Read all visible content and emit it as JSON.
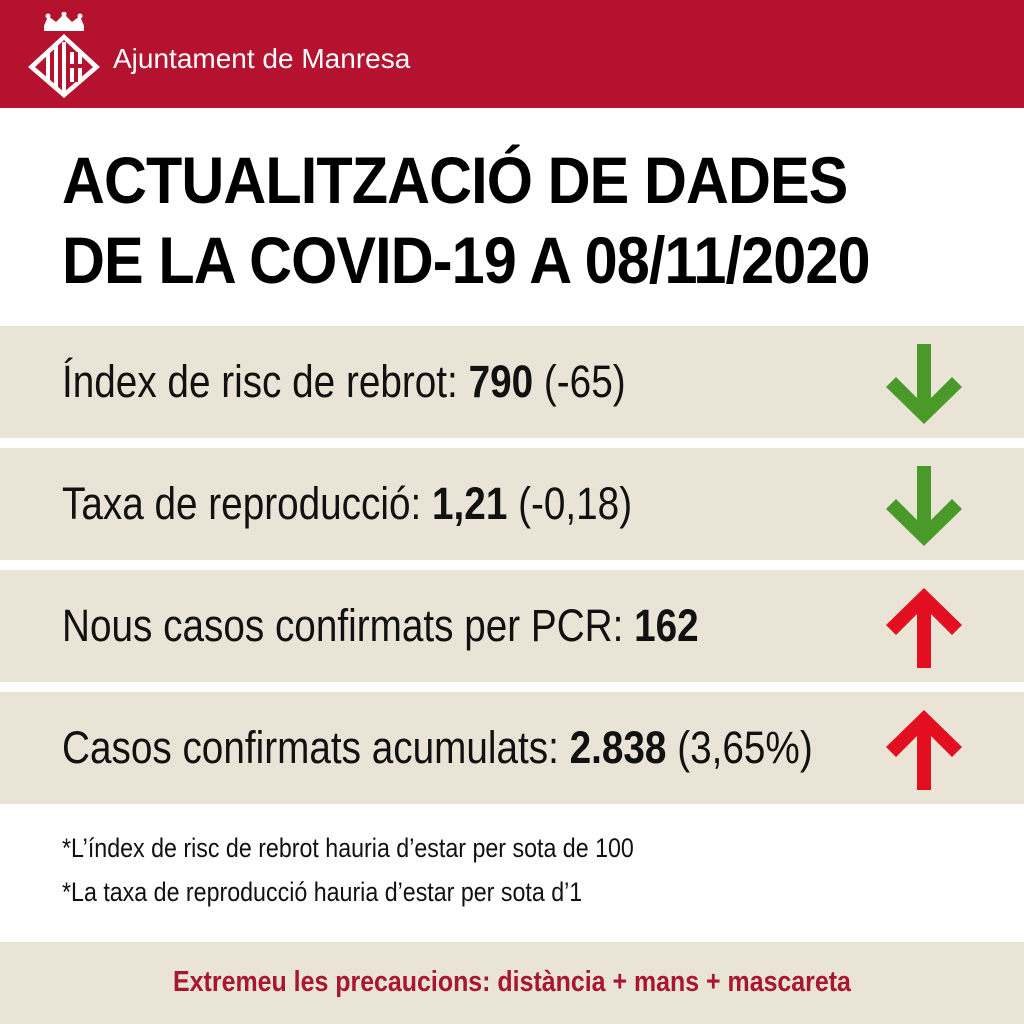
{
  "header": {
    "org_name": "Ajuntament de Manresa",
    "background_color": "#b5122f",
    "logo_icon": "manresa-coat-of-arms-icon"
  },
  "title": {
    "line1": "ACTUALITZACIÓ DE DADES",
    "line2": "DE LA COVID-19 A 08/11/2020"
  },
  "indicators": [
    {
      "label": "Índex de risc de rebrot: ",
      "value": "790",
      "change": " (-65)",
      "trend": "down",
      "trend_color": "#4a9a2a"
    },
    {
      "label": "Taxa de reproducció: ",
      "value": "1,21",
      "change": " (-0,18)",
      "trend": "down",
      "trend_color": "#4a9a2a"
    },
    {
      "label": "Nous casos confirmats per PCR: ",
      "value": "162",
      "change": "",
      "trend": "up",
      "trend_color": "#e30f20"
    },
    {
      "label": "Casos confirmats acumulats: ",
      "value": "2.838",
      "change": " (3,65%)",
      "trend": "up",
      "trend_color": "#e30f20"
    }
  ],
  "notes": [
    "*L’índex de risc de rebrot hauria d’estar per sota de 100",
    "*La taxa de reproducció hauria d’estar per sota d’1"
  ],
  "footer": {
    "slogan": "Extremeu les precaucions: distància + mans + mascareta",
    "slogan_color": "#a8172f"
  },
  "row_background": "#e9e4d6"
}
